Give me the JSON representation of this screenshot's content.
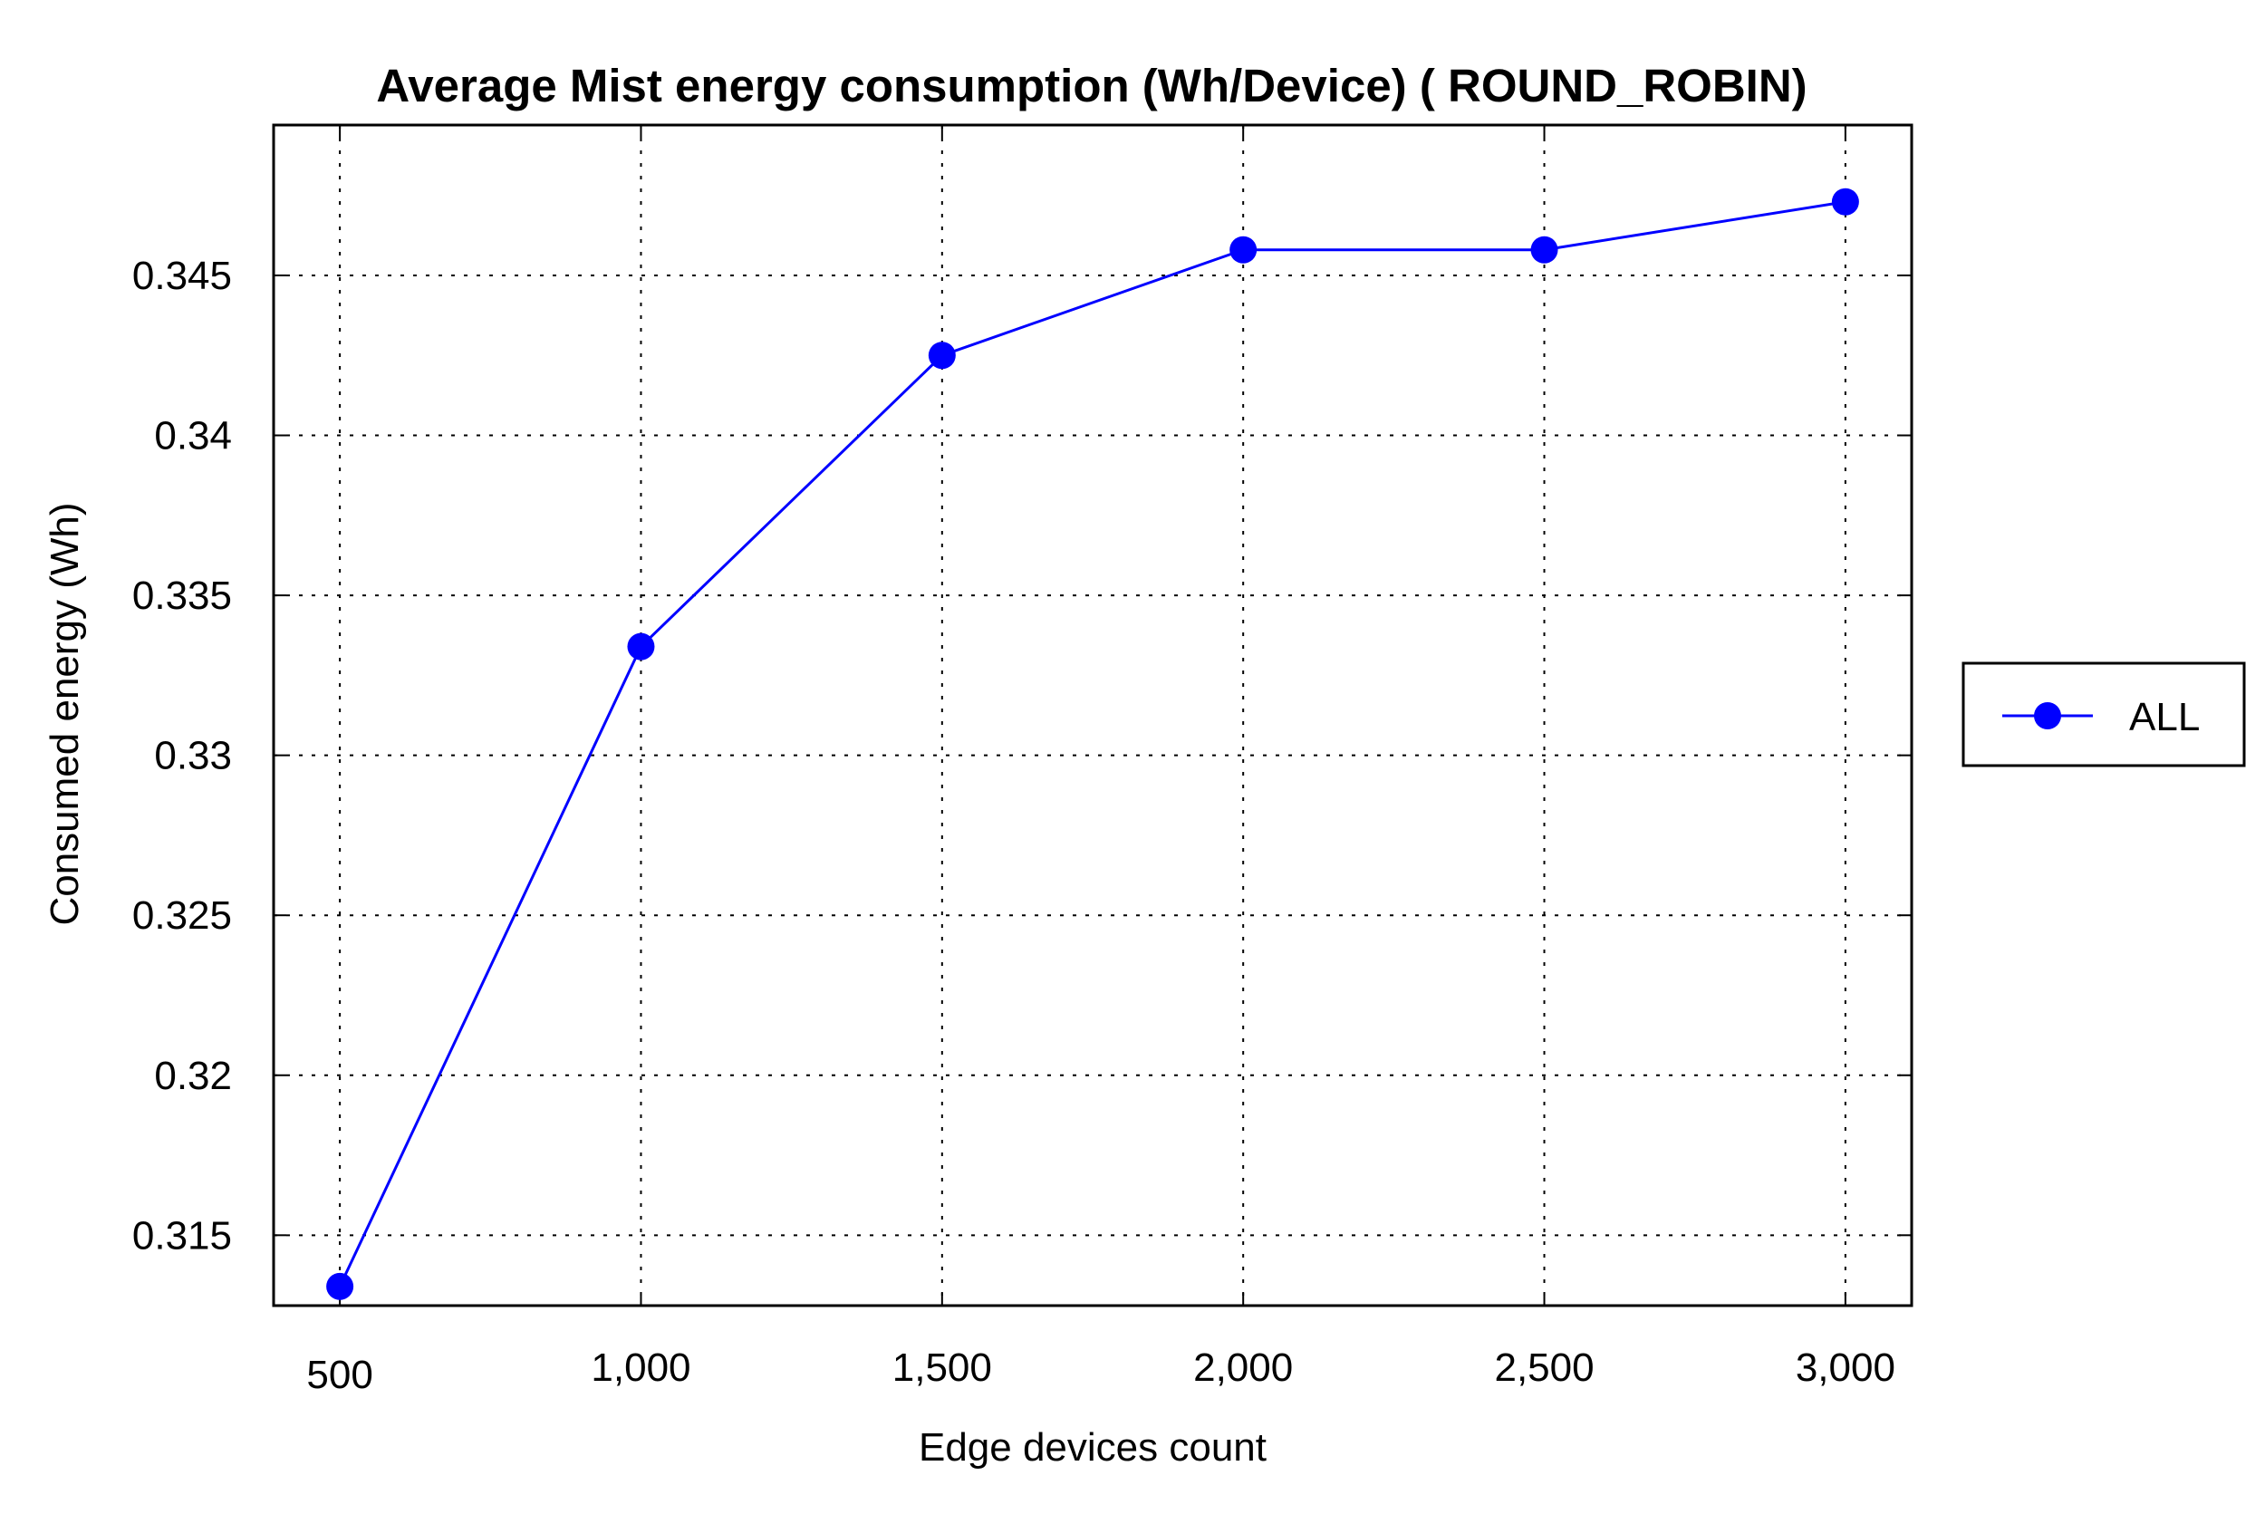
{
  "chart_data": {
    "type": "line",
    "title": "Average Mist energy consumption (Wh/Device) ( ROUND_ROBIN)",
    "xlabel": "Edge devices count",
    "ylabel": "Consumed energy (Wh)",
    "x": [
      500,
      1000,
      1500,
      2000,
      2500,
      3000
    ],
    "x_tick_labels": [
      "500",
      "1,000",
      "1,500",
      "2,000",
      "2,500",
      "3,000"
    ],
    "y_ticks": [
      0.315,
      0.32,
      0.325,
      0.33,
      0.335,
      0.34,
      0.345
    ],
    "y_tick_labels": [
      "0.315",
      "0.32",
      "0.325",
      "0.33",
      "0.335",
      "0.34",
      "0.345"
    ],
    "xlim": [
      390,
      3110
    ],
    "ylim": [
      0.3128,
      0.3497
    ],
    "grid": true,
    "legend_position": "right",
    "series": [
      {
        "name": "ALL",
        "color": "#0000ff",
        "marker": "circle",
        "values": [
          0.3134,
          0.3334,
          0.3425,
          0.3458,
          0.3458,
          0.3473
        ]
      }
    ]
  }
}
